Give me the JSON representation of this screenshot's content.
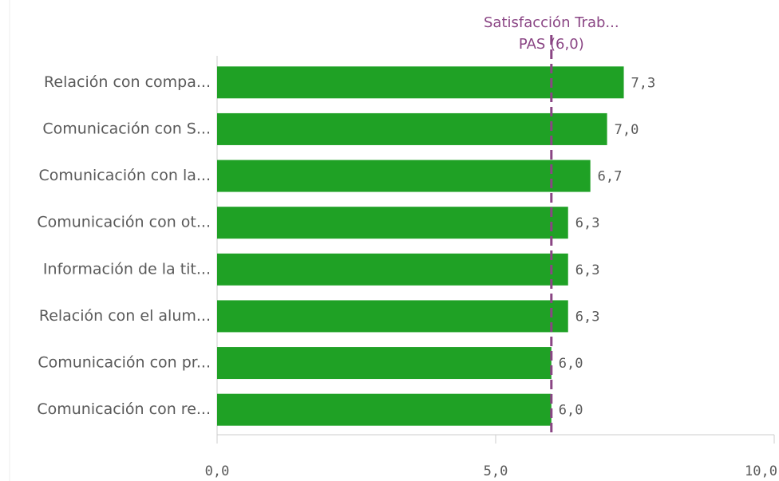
{
  "chart_data": {
    "type": "bar",
    "orientation": "horizontal",
    "categories": [
      "Relación con compa...",
      "Comunicación con S...",
      "Comunicación con la...",
      "Comunicación con ot...",
      "Información de la tit...",
      "Relación con el alum...",
      "Comunicación con pr...",
      "Comunicación con re..."
    ],
    "values": [
      7.3,
      7.0,
      6.7,
      6.3,
      6.3,
      6.3,
      6.0,
      6.0
    ],
    "value_labels": [
      "7,3",
      "7,0",
      "6,7",
      "6,3",
      "6,3",
      "6,3",
      "6,0",
      "6,0"
    ],
    "color": "#1fa125",
    "xlim": [
      0,
      10
    ],
    "xticks": [
      {
        "value": 0,
        "label": "0,0"
      },
      {
        "value": 5,
        "label": "5,0"
      },
      {
        "value": 10,
        "label": "10,0"
      }
    ],
    "reference_line": {
      "value": 6.0,
      "label": [
        "Satisfacción Trab...",
        "PAS (6,0)"
      ],
      "color": "#8a4584"
    }
  }
}
